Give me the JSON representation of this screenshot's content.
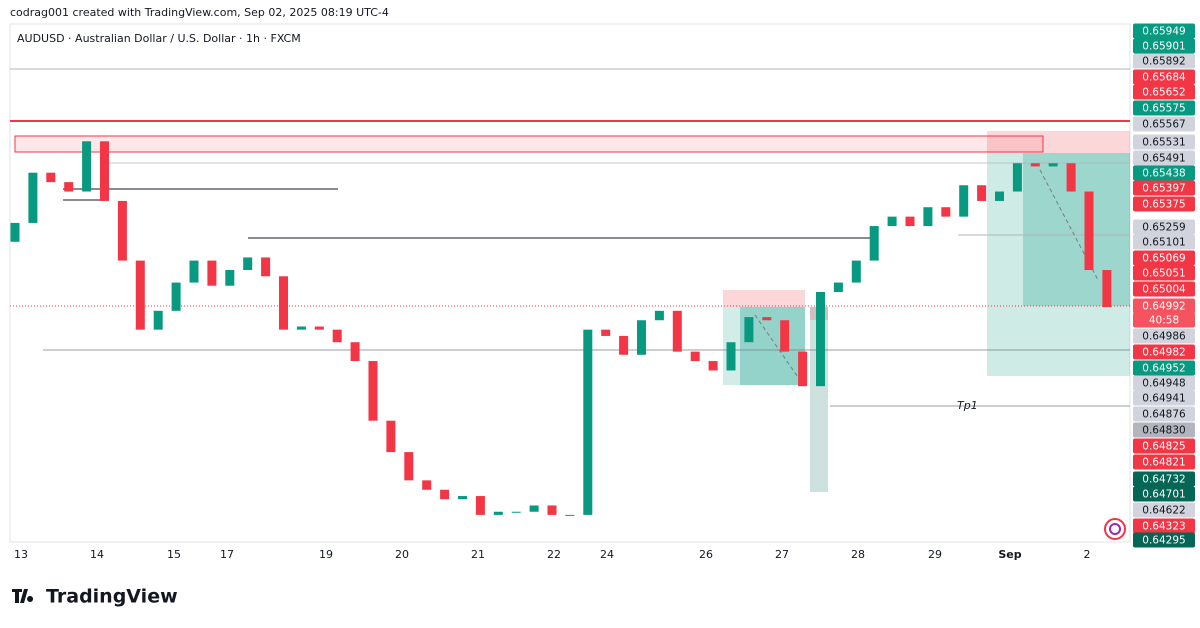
{
  "header": {
    "text": "codrag001 created with TradingView.com, Sep 02, 2025 08:19 UTC-4"
  },
  "chart_data": {
    "type": "candlestick",
    "title": "AUDUSD · Australian Dollar / U.S. Dollar · 1h · FXCM",
    "categories": [
      "13",
      "14",
      "15",
      "17",
      "19",
      "20",
      "21",
      "22",
      "24",
      "26",
      "27",
      "28",
      "29",
      "Sep",
      "2"
    ],
    "open": [
      0.652,
      0.6526,
      0.6542,
      0.6539,
      0.6536,
      0.6552,
      0.6533,
      0.6514,
      0.6492,
      0.6498,
      0.6507,
      0.6514,
      0.6506,
      0.6511,
      0.6515,
      0.6509,
      0.6492,
      0.6493,
      0.6492,
      0.6488,
      0.6482,
      0.6463,
      0.6453,
      0.6444,
      0.6441,
      0.6438,
      0.6439,
      0.6433,
      0.6434,
      0.6434,
      0.6436,
      0.6433,
      0.6433,
      0.6492,
      0.649,
      0.6484,
      0.6495,
      0.6498,
      0.6485,
      0.6482,
      0.6479,
      0.6488,
      0.6496,
      0.6495,
      0.6485,
      0.6474,
      0.6504,
      0.6507,
      0.6514,
      0.6525,
      0.6528,
      0.6525,
      0.6531,
      0.6528,
      0.6538,
      0.6533,
      0.6536,
      0.6545,
      0.6544,
      0.6545,
      0.6536,
      0.6511
    ],
    "close": [
      0.6526,
      0.6542,
      0.6539,
      0.6536,
      0.6552,
      0.6533,
      0.6514,
      0.6492,
      0.6498,
      0.6507,
      0.6514,
      0.6506,
      0.6511,
      0.6515,
      0.6509,
      0.6492,
      0.6493,
      0.6492,
      0.6488,
      0.6482,
      0.6463,
      0.6453,
      0.6444,
      0.6441,
      0.6438,
      0.6439,
      0.6433,
      0.6434,
      0.6434,
      0.6436,
      0.6433,
      0.6433,
      0.6492,
      0.649,
      0.6484,
      0.6495,
      0.6498,
      0.6485,
      0.6482,
      0.6479,
      0.6488,
      0.6496,
      0.6495,
      0.6485,
      0.6474,
      0.6504,
      0.6507,
      0.6514,
      0.6525,
      0.6528,
      0.6525,
      0.6531,
      0.6528,
      0.6538,
      0.6533,
      0.6536,
      0.6545,
      0.6544,
      0.6545,
      0.6536,
      0.6511,
      0.64992
    ],
    "up_color": "#089981",
    "down_color": "#f23645",
    "ylim": [
      0.6425,
      0.659
    ],
    "price_badges": [
      {
        "label": "0.65949",
        "color": "#089981"
      },
      {
        "label": "0.65901",
        "color": "#089981"
      },
      {
        "label": "0.65892",
        "color": "#d1d4dc"
      },
      {
        "label": "0.65684",
        "color": "#f23645"
      },
      {
        "label": "0.65652",
        "color": "#f23645"
      },
      {
        "label": "0.65575",
        "color": "#089981"
      },
      {
        "label": "0.65567",
        "color": "#d1d4dc"
      },
      {
        "label": "0.65531",
        "color": "#d1d4dc"
      },
      {
        "label": "0.65491",
        "color": "#d1d4dc"
      },
      {
        "label": "0.65438",
        "color": "#089981"
      },
      {
        "label": "0.65397",
        "color": "#f23645"
      },
      {
        "label": "0.65375",
        "color": "#f23645"
      },
      {
        "label": "0.65259",
        "color": "#d1d4dc"
      },
      {
        "label": "0.65101",
        "color": "#d1d4dc"
      },
      {
        "label": "0.65069",
        "color": "#f23645"
      },
      {
        "label": "0.65051",
        "color": "#f23645"
      },
      {
        "label": "0.65004",
        "color": "#f23645"
      },
      {
        "label": "0.64992",
        "color": "#f7525f"
      },
      {
        "label": "40:58",
        "color": "#f7525f"
      },
      {
        "label": "0.64986",
        "color": "#d1d4dc"
      },
      {
        "label": "0.64982",
        "color": "#f23645"
      },
      {
        "label": "0.64952",
        "color": "#089981"
      },
      {
        "label": "0.64948",
        "color": "#d1d4dc"
      },
      {
        "label": "0.64941",
        "color": "#d1d4dc"
      },
      {
        "label": "0.64876",
        "color": "#d1d4dc"
      },
      {
        "label": "0.64830",
        "color": "#b2b5be"
      },
      {
        "label": "0.64825",
        "color": "#f23645"
      },
      {
        "label": "0.64821",
        "color": "#f23645"
      },
      {
        "label": "0.64732",
        "color": "#056656"
      },
      {
        "label": "0.64701",
        "color": "#056656"
      },
      {
        "label": "0.64622",
        "color": "#d1d4dc"
      },
      {
        "label": "0.64323",
        "color": "#f23645"
      },
      {
        "label": "0.64295",
        "color": "#056656"
      }
    ],
    "annotations": [
      "Tp1"
    ]
  },
  "footer": {
    "logo": "TradingView"
  }
}
